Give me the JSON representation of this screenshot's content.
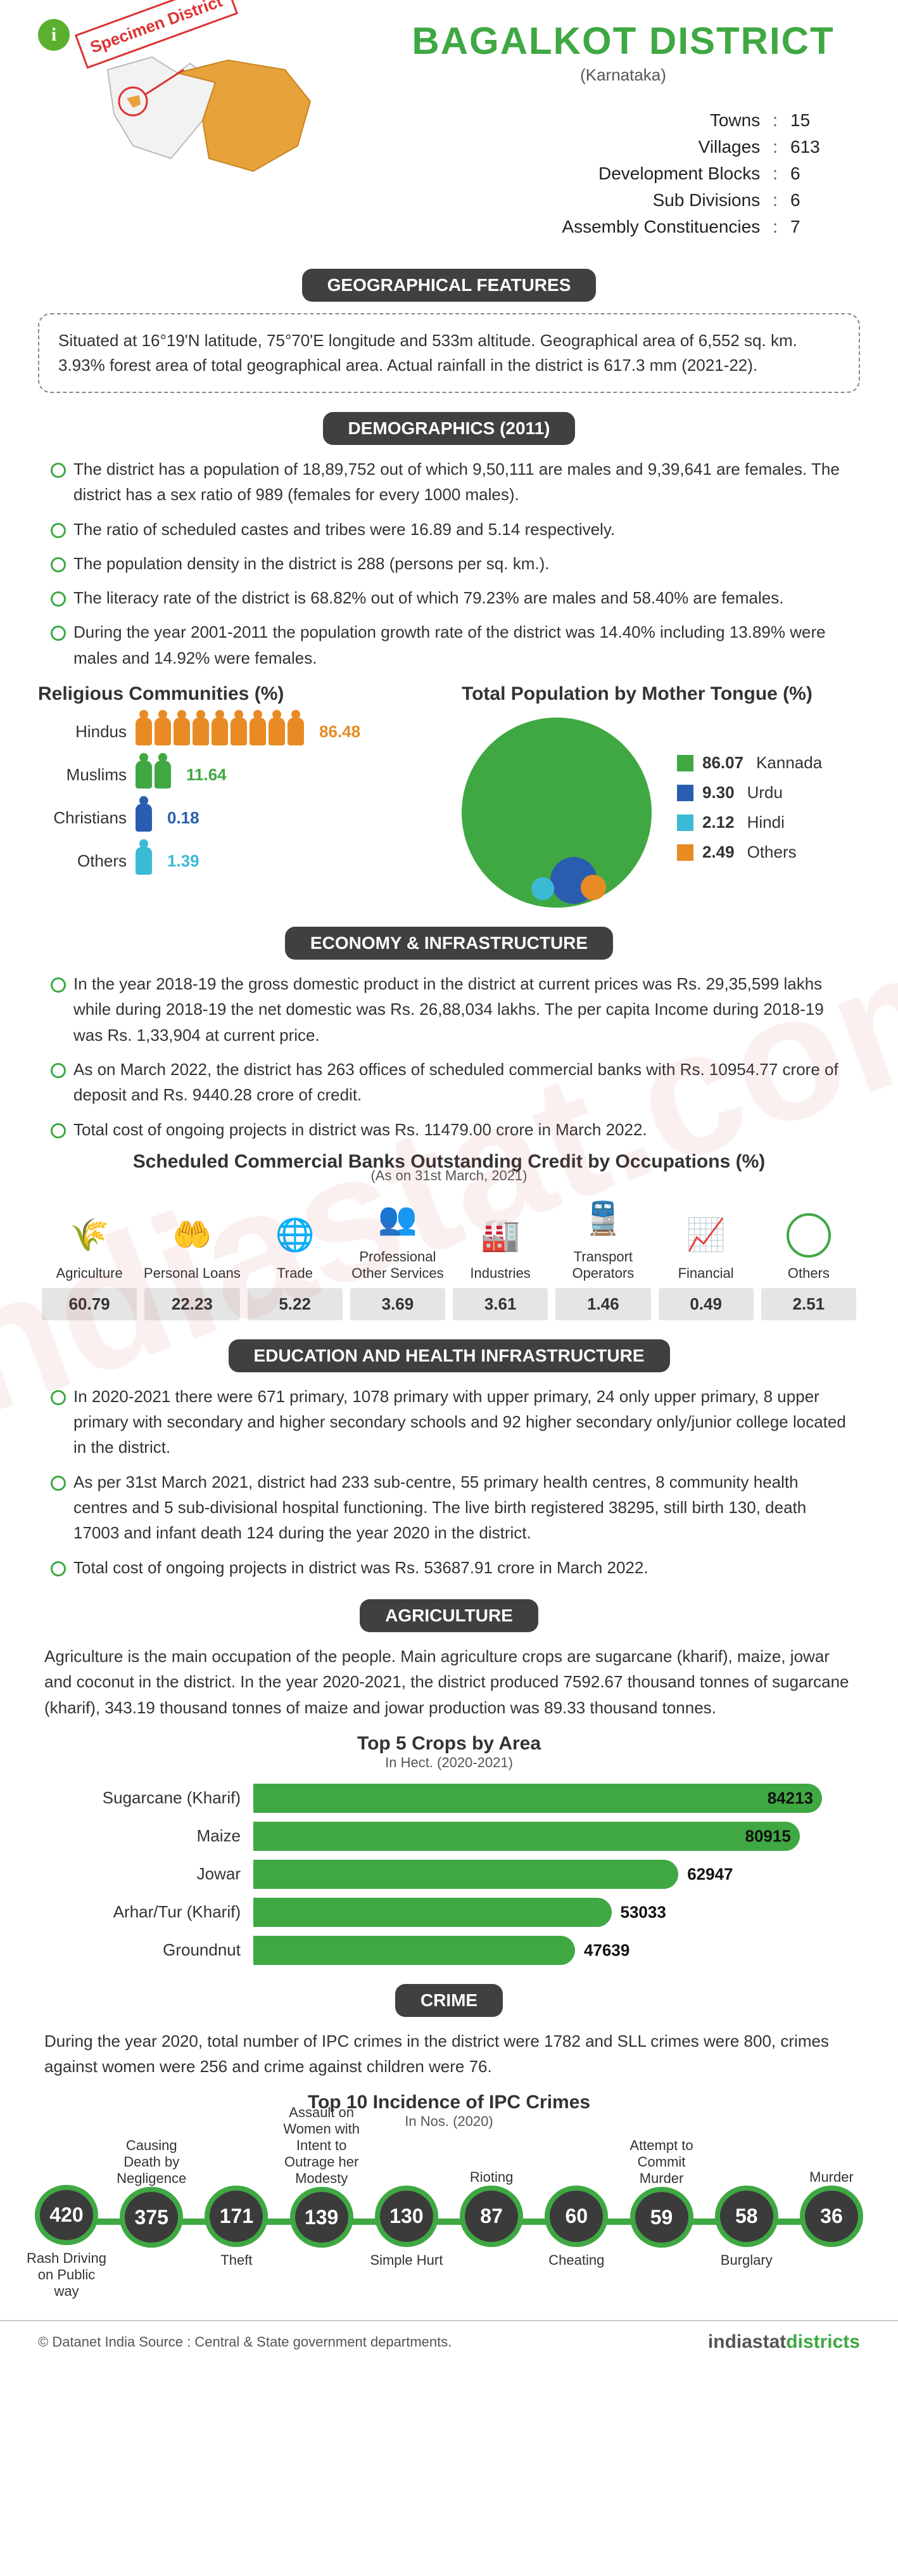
{
  "header": {
    "specimen": "Specimen District",
    "title": "BAGALKOT DISTRICT",
    "subtitle": "(Karnataka)",
    "stats": [
      {
        "label": "Towns",
        "value": "15"
      },
      {
        "label": "Villages",
        "value": "613"
      },
      {
        "label": "Development Blocks",
        "value": "6"
      },
      {
        "label": "Sub Divisions",
        "value": "6"
      },
      {
        "label": "Assembly Constituencies",
        "value": "7"
      }
    ]
  },
  "geo": {
    "title": "GEOGRAPHICAL FEATURES",
    "text": "Situated at 16°19'N latitude, 75°70'E longitude and 533m altitude. Geographical area of 6,552 sq. km. 3.93% forest area of total geographical area. Actual rainfall in the district is 617.3 mm (2021-22)."
  },
  "demo": {
    "title": "DEMOGRAPHICS (2011)",
    "bullets": [
      "The district has a population of 18,89,752 out of which 9,50,111 are males and 9,39,641 are females. The district has a sex ratio of 989 (females for every 1000 males).",
      "The ratio of scheduled castes and tribes were 16.89 and 5.14 respectively.",
      "The population density in the district is 288 (persons per sq. km.).",
      "The literacy rate of the district is 68.82% out of which 79.23% are males and 58.40% are females.",
      "During the year 2001-2011 the population growth rate of the district was 14.40% including 13.89% were males and 14.92% were females."
    ],
    "religion": {
      "heading": "Religious Communities (%)",
      "rows": [
        {
          "label": "Hindus",
          "value": "86.48",
          "count": 9,
          "color": "#e88b25"
        },
        {
          "label": "Muslims",
          "value": "11.64",
          "count": 2,
          "color": "#3fa843"
        },
        {
          "label": "Christians",
          "value": "0.18",
          "count": 1,
          "color": "#2a5db0"
        },
        {
          "label": "Others",
          "value": "1.39",
          "count": 1,
          "color": "#3bbad6"
        }
      ]
    },
    "tongue": {
      "heading": "Total Population by Mother Tongue (%)",
      "slices": [
        {
          "label": "Kannada",
          "value": "86.07",
          "color": "#3fa843"
        },
        {
          "label": "Urdu",
          "value": "9.30",
          "color": "#2a5db0"
        },
        {
          "label": "Hindi",
          "value": "2.12",
          "color": "#3bbad6"
        },
        {
          "label": "Others",
          "value": "2.49",
          "color": "#e88b25"
        }
      ]
    }
  },
  "econ": {
    "title": "ECONOMY & INFRASTRUCTURE",
    "bullets": [
      "In the year 2018-19 the gross domestic product in the district at current prices was Rs. 29,35,599 lakhs while during 2018-19 the net domestic was Rs. 26,88,034 lakhs. The per capita Income during 2018-19 was Rs. 1,33,904 at current price.",
      "As on March 2022, the district has 263 offices of scheduled commercial banks with Rs. 10954.77 crore of deposit and Rs. 9440.28 crore of credit.",
      "Total cost of ongoing projects in district was Rs. 11479.00 crore in March 2022."
    ],
    "credit": {
      "heading": "Scheduled Commercial Banks Outstanding Credit by Occupations (%)",
      "sub": "(As on 31st March, 2021)",
      "items": [
        {
          "label": "Agriculture",
          "value": "60.79",
          "glyph": "🌾"
        },
        {
          "label": "Personal Loans",
          "value": "22.23",
          "glyph": "🤲"
        },
        {
          "label": "Trade",
          "value": "5.22",
          "glyph": "🌐"
        },
        {
          "label": "Professional Other Services",
          "value": "3.69",
          "glyph": "👥"
        },
        {
          "label": "Industries",
          "value": "3.61",
          "glyph": "🏭"
        },
        {
          "label": "Transport Operators",
          "value": "1.46",
          "glyph": "🚆"
        },
        {
          "label": "Financial",
          "value": "0.49",
          "glyph": "📈"
        },
        {
          "label": "Others",
          "value": "2.51",
          "glyph": ""
        }
      ]
    }
  },
  "edu": {
    "title": "EDUCATION AND HEALTH INFRASTRUCTURE",
    "bullets": [
      "In 2020-2021 there were 671 primary, 1078 primary with upper primary, 24 only upper primary, 8 upper primary with secondary and higher secondary schools and 92 higher secondary only/junior college located in the district.",
      "As per 31st March 2021, district had 233 sub-centre, 55 primary health centres, 8 community health centres and 5 sub-divisional hospital functioning. The live birth registered 38295, still birth 130, death 17003 and infant death 124 during the year 2020 in the district.",
      "Total cost of ongoing projects in district was Rs. 53687.91 crore in March 2022."
    ]
  },
  "agri": {
    "title": "AGRICULTURE",
    "para": "Agriculture is the main occupation of the people. Main agriculture crops are sugarcane (kharif), maize, jowar and coconut in the district. In the year 2020-2021, the district produced 7592.67 thousand tonnes of sugarcane (kharif), 343.19 thousand tonnes of maize and jowar production was 89.33 thousand tonnes.",
    "chart": {
      "title": "Top 5 Crops by Area",
      "sub": "In Hect. (2020-2021)",
      "max": 84213,
      "rows": [
        {
          "label": "Sugarcane (Kharif)",
          "value": 84213
        },
        {
          "label": "Maize",
          "value": 80915
        },
        {
          "label": "Jowar",
          "value": 62947
        },
        {
          "label": "Arhar/Tur (Kharif)",
          "value": 53033
        },
        {
          "label": "Groundnut",
          "value": 47639
        }
      ],
      "bar_color": "#3fa843"
    }
  },
  "crime": {
    "title": "CRIME",
    "para": "During the year 2020, total number of IPC crimes in the district were 1782 and SLL crimes were 800, crimes against women were 256 and crime against children were 76.",
    "chart": {
      "title": "Top 10 Incidence of IPC Crimes",
      "sub": "In Nos. (2020)",
      "items": [
        {
          "top": "",
          "bot": "Rash Driving on Public way",
          "value": "420"
        },
        {
          "top": "Causing Death by Negligence",
          "bot": "",
          "value": "375"
        },
        {
          "top": "",
          "bot": "Theft",
          "value": "171"
        },
        {
          "top": "Assault on Women with Intent to Outrage her Modesty",
          "bot": "",
          "value": "139"
        },
        {
          "top": "",
          "bot": "Simple Hurt",
          "value": "130"
        },
        {
          "top": "Rioting",
          "bot": "",
          "value": "87"
        },
        {
          "top": "",
          "bot": "Cheating",
          "value": "60"
        },
        {
          "top": "Attempt to Commit Murder",
          "bot": "",
          "value": "59"
        },
        {
          "top": "",
          "bot": "Burglary",
          "value": "58"
        },
        {
          "top": "Murder",
          "bot": "",
          "value": "36"
        }
      ]
    }
  },
  "footer": {
    "left": "© Datanet India   Source : Central & State government departments.",
    "logo_black": "indiastat",
    "logo_green": "districts"
  },
  "info_symbol": "i"
}
